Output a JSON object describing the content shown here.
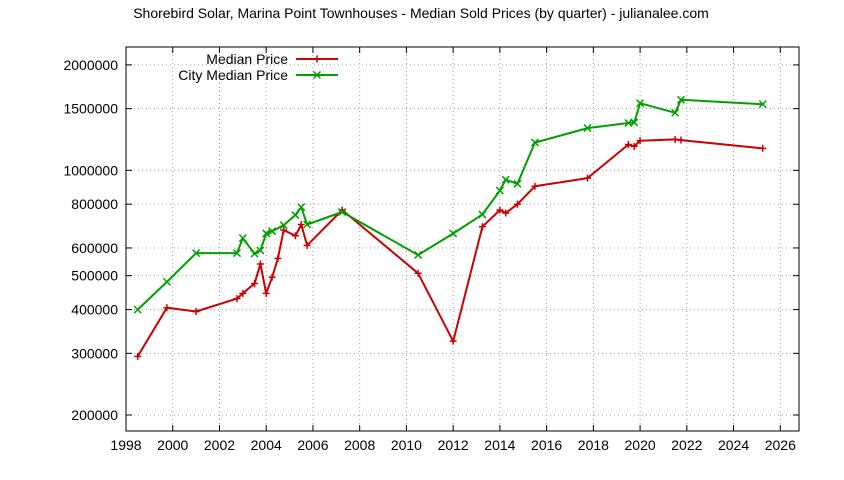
{
  "chart_data": {
    "type": "line",
    "title": "Shorebird Solar, Marina Point Townhouses - Median Sold Prices (by quarter) - julianalee.com",
    "xlabel": "",
    "ylabel": "",
    "xlim": [
      1998,
      2026.8
    ],
    "ylim": [
      180000,
      2250000
    ],
    "y_scale": "log",
    "grid": true,
    "legend_position": "top-left",
    "x_ticks": [
      1998,
      2000,
      2002,
      2004,
      2006,
      2008,
      2010,
      2012,
      2014,
      2016,
      2018,
      2020,
      2022,
      2024,
      2026
    ],
    "x_tick_labels": [
      "1998",
      "2000",
      "2002",
      "2004",
      "2006",
      "2008",
      "2010",
      "2012",
      "2014",
      "2016",
      "2018",
      "2020",
      "2022",
      "2024",
      "2026"
    ],
    "y_ticks": [
      200000,
      300000,
      400000,
      500000,
      600000,
      800000,
      1000000,
      1500000,
      2000000
    ],
    "y_tick_labels": [
      "200000",
      "300000",
      "400000",
      "500000",
      "600000",
      "800000",
      "1000000",
      "1500000",
      "2000000"
    ],
    "series": [
      {
        "name": "Median Price",
        "color": "#cc0000",
        "marker": "plus",
        "x": [
          1998.5,
          1999.75,
          2001.0,
          2002.75,
          2003.0,
          2003.5,
          2003.75,
          2004.0,
          2004.25,
          2004.5,
          2004.75,
          2005.25,
          2005.5,
          2005.75,
          2007.25,
          2010.5,
          2012.0,
          2013.25,
          2014.0,
          2014.25,
          2014.75,
          2015.5,
          2017.75,
          2019.5,
          2019.75,
          2020.0,
          2021.5,
          2021.75,
          2025.25
        ],
        "y": [
          294000,
          405000,
          395000,
          430000,
          445000,
          475000,
          540000,
          445000,
          495000,
          560000,
          675000,
          650000,
          700000,
          610000,
          770000,
          508000,
          325000,
          690000,
          770000,
          755000,
          800000,
          900000,
          950000,
          1185000,
          1170000,
          1215000,
          1225000,
          1220000,
          1155000
        ]
      },
      {
        "name": "City Median Price",
        "color": "#00a000",
        "marker": "cross",
        "x": [
          1998.5,
          1999.75,
          2001.0,
          2002.75,
          2003.0,
          2003.5,
          2003.75,
          2004.0,
          2004.25,
          2004.75,
          2005.25,
          2005.5,
          2005.75,
          2007.25,
          2010.5,
          2012.0,
          2013.25,
          2014.0,
          2014.25,
          2014.75,
          2015.5,
          2017.75,
          2019.5,
          2019.75,
          2020.0,
          2021.5,
          2021.75,
          2025.25
        ],
        "y": [
          400000,
          480000,
          580000,
          580000,
          640000,
          578000,
          590000,
          660000,
          670000,
          697000,
          745000,
          785000,
          700000,
          760000,
          573000,
          660000,
          748000,
          875000,
          940000,
          915000,
          1200000,
          1320000,
          1365000,
          1370000,
          1555000,
          1460000,
          1590000,
          1545000
        ]
      }
    ]
  }
}
